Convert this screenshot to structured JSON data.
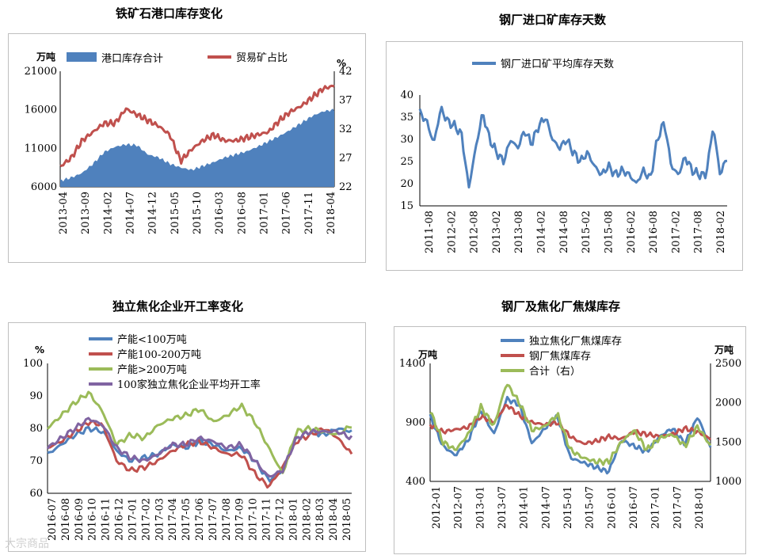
{
  "chart_data": [
    {
      "id": "c1",
      "type": "area+line",
      "title": "铁矿石港口库存变化",
      "ylabel_left": "万吨",
      "ylabel_right": "%",
      "ylim_left": [
        6000,
        21000
      ],
      "yticks_left": [
        "21000",
        "16000",
        "11000",
        "6000"
      ],
      "ylim_right": [
        22,
        42
      ],
      "yticks_right": [
        "42",
        "37",
        "32",
        "27",
        "22"
      ],
      "xticks": [
        "2013-04",
        "2013-09",
        "2014-02",
        "2014-07",
        "2014-12",
        "2015-05",
        "2015-10",
        "2016-03",
        "2016-08",
        "2017-01",
        "2017-06",
        "2017-11",
        "2018-04"
      ],
      "series": [
        {
          "name": "港口库存合计",
          "kind": "area",
          "axis": "left",
          "color": "#4f81bd",
          "values": [
            6800,
            7200,
            7800,
            9000,
            10500,
            11200,
            11500,
            11400,
            10200,
            9800,
            9000,
            8500,
            8200,
            8700,
            9200,
            9800,
            10200,
            10600,
            11200,
            11900,
            12600,
            13400,
            14300,
            15200,
            15800,
            16000
          ]
        },
        {
          "name": "贸易矿占比",
          "kind": "line",
          "axis": "right",
          "color": "#c0504d",
          "values": [
            25.5,
            27,
            30,
            31.5,
            33,
            33,
            35.5,
            34.5,
            33.5,
            32.5,
            31,
            26.5,
            28.5,
            30,
            31,
            30,
            30,
            30.5,
            31,
            31.5,
            33.5,
            35,
            36,
            37.5,
            39,
            39.5
          ]
        }
      ]
    },
    {
      "id": "c2",
      "type": "line",
      "title": "钢厂进口矿库存天数",
      "ylim": [
        15,
        40
      ],
      "yticks": [
        "40",
        "35",
        "30",
        "25",
        "20",
        "15"
      ],
      "xticks": [
        "2011-08",
        "2012-02",
        "2012-08",
        "2013-02",
        "2013-08",
        "2014-02",
        "2014-08",
        "2015-02",
        "2015-08",
        "2016-02",
        "2016-08",
        "2017-02",
        "2017-08",
        "2018-02"
      ],
      "series": [
        {
          "name": "钢厂进口矿平均库存天数",
          "color": "#4f81bd",
          "values": [
            36,
            34,
            29,
            37,
            34,
            33,
            31,
            19,
            28,
            36,
            30,
            27,
            25,
            30,
            28,
            32,
            29,
            33,
            35,
            30,
            28,
            30,
            27,
            25,
            27,
            24,
            22,
            24,
            22,
            23,
            22,
            20,
            23,
            21,
            30,
            34,
            24,
            22,
            26,
            23,
            22,
            22,
            33,
            22,
            26
          ]
        }
      ]
    },
    {
      "id": "c3",
      "type": "line",
      "title": "独立焦化企业开工率变化",
      "ylabel": "%",
      "ylim": [
        60,
        100
      ],
      "yticks": [
        "100",
        "90",
        "80",
        "70",
        "60"
      ],
      "xticks": [
        "2016-07",
        "2016-08",
        "2016-09",
        "2016-10",
        "2016-11",
        "2016-12",
        "2017-01",
        "2017-02",
        "2017-03",
        "2017-04",
        "2017-05",
        "2017-06",
        "2017-07",
        "2017-08",
        "2017-09",
        "2017-10",
        "2017-11",
        "2017-12",
        "2018-01",
        "2018-02",
        "2018-03",
        "2018-04",
        "2018-05"
      ],
      "series": [
        {
          "name": "产能<100万吨",
          "color": "#4f81bd",
          "values": [
            72,
            75,
            78,
            80,
            79,
            73,
            70,
            71,
            72,
            75,
            74,
            76,
            75,
            73,
            74,
            70,
            64,
            67,
            77,
            79,
            78,
            80,
            79
          ]
        },
        {
          "name": "产能100-200万吨",
          "color": "#c0504d",
          "values": [
            74,
            76,
            79,
            82,
            81,
            70,
            67,
            68,
            70,
            73,
            75,
            76,
            74,
            72,
            72,
            66,
            62,
            68,
            76,
            78,
            80,
            77,
            72
          ]
        },
        {
          "name": "产能>200万吨",
          "color": "#9bbb59",
          "values": [
            80,
            84,
            88,
            91,
            85,
            75,
            78,
            77,
            81,
            83,
            84,
            86,
            82,
            84,
            87,
            82,
            74,
            66,
            79,
            80,
            79,
            78,
            81
          ]
        },
        {
          "name": "100家独立焦化企业平均开工率",
          "color": "#8064a2",
          "values": [
            74,
            77,
            80,
            83,
            81,
            74,
            71,
            70,
            72,
            75,
            75,
            77,
            76,
            74,
            75,
            70,
            65,
            67,
            77,
            79,
            79,
            79,
            77
          ]
        }
      ]
    },
    {
      "id": "c4",
      "type": "line",
      "title": "钢厂及焦化厂焦煤库存",
      "ylabel_left": "万吨",
      "ylabel_right": "万吨",
      "ylim_left": [
        400,
        1400
      ],
      "yticks_left": [
        "1400",
        "900",
        "400"
      ],
      "ylim_right": [
        1000,
        2500
      ],
      "yticks_right": [
        "2500",
        "2000",
        "1500",
        "1000"
      ],
      "xticks": [
        "2012-01",
        "2012-07",
        "2013-01",
        "2013-07",
        "2014-01",
        "2014-07",
        "2015-01",
        "2015-07",
        "2016-01",
        "2016-07",
        "2017-01",
        "2017-07",
        "2018-01"
      ],
      "series": [
        {
          "name": "独立焦化厂焦煤库存",
          "axis": "left",
          "color": "#4f81bd",
          "values": [
            950,
            700,
            620,
            750,
            1000,
            800,
            1100,
            1050,
            720,
            850,
            950,
            600,
            560,
            520,
            480,
            750,
            700,
            650,
            780,
            850,
            720,
            950,
            680
          ]
        },
        {
          "name": "钢厂焦煤库存",
          "axis": "left",
          "color": "#c0504d",
          "values": [
            880,
            820,
            840,
            860,
            950,
            900,
            1050,
            960,
            900,
            880,
            900,
            780,
            720,
            740,
            780,
            760,
            820,
            800,
            780,
            800,
            850,
            820,
            760
          ]
        },
        {
          "name": "合计（右）",
          "axis": "right",
          "color": "#9bbb59",
          "values": [
            1900,
            1500,
            1400,
            1600,
            1950,
            1700,
            2250,
            2000,
            1650,
            1700,
            1850,
            1400,
            1300,
            1250,
            1250,
            1500,
            1650,
            1400,
            1550,
            1600,
            1450,
            1700,
            1450
          ]
        }
      ]
    }
  ],
  "watermark": "大宗商品"
}
